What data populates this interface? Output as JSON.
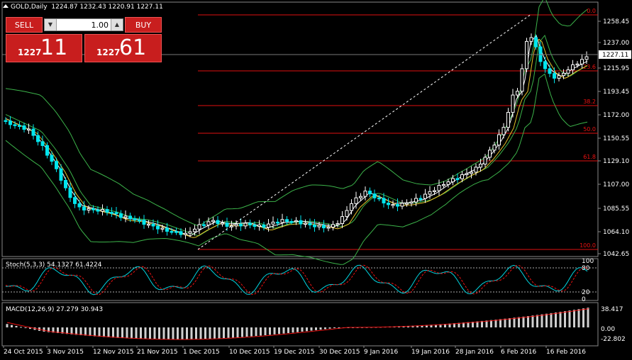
{
  "header": {
    "symbol": "GOLD,Daily",
    "ohlc": "1224.87 1232.43 1220.91 1227.11"
  },
  "trade": {
    "sell_label": "SELL",
    "buy_label": "BUY",
    "lot": "1.00",
    "sell_small": "1227",
    "sell_big": "11",
    "buy_small": "1227",
    "buy_big": "61"
  },
  "price_axis": {
    "labels": [
      "1258.45",
      "1237.00",
      "1215.95",
      "1193.45",
      "1172.00",
      "1150.55",
      "1129.10",
      "1107.00",
      "1085.55",
      "1064.10",
      "1042.65"
    ],
    "current": "1227.11"
  },
  "fib": {
    "labels": [
      "0.0",
      "23.6",
      "38.2",
      "50.0",
      "61.8",
      "100.0"
    ]
  },
  "stoch": {
    "label": "Stoch(5,3,3) 54.1327 61.4224",
    "levels": [
      "100",
      "80",
      "20",
      "0"
    ]
  },
  "macd": {
    "label": "MACD(12,26,9) 27.279 30.943",
    "levels": [
      "38.417",
      "0.00",
      "-22.802"
    ]
  },
  "dates": [
    "24 Oct 2015",
    "3 Nov 2015",
    "12 Nov 2015",
    "21 Nov 2015",
    "1 Dec 2015",
    "10 Dec 2015",
    "19 Dec 2015",
    "30 Dec 2015",
    "9 Jan 2016",
    "19 Jan 2016",
    "28 Jan 2016",
    "6 Feb 2016",
    "16 Feb 2016"
  ],
  "colors": {
    "bull": "#ffffff",
    "bear": "#00e5ee",
    "bollinger": "#3cb34a",
    "ma_fast": "#ffffff",
    "ma_slow": "#e6c229",
    "fib": "#e11111"
  }
}
